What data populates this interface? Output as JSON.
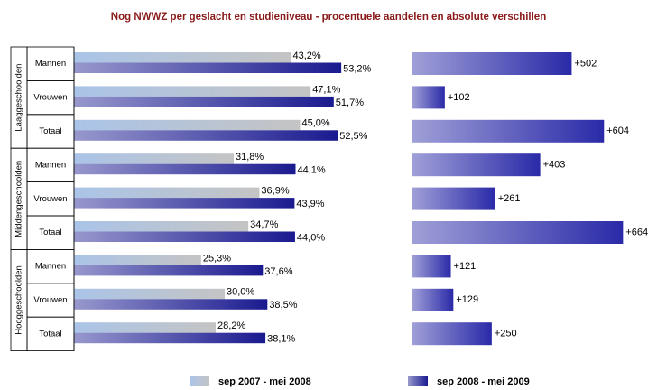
{
  "chart_data": [
    {
      "type": "bar",
      "orientation": "horizontal",
      "title": "Nog NWWZ per geslacht en studieniveau - procentuele aandelen en absolute verschillen",
      "groups": [
        "Laaggeschoolden",
        "Middengeschoolden",
        "Hooggeschoolden"
      ],
      "categories": [
        "Mannen",
        "Vrouwen",
        "Totaal",
        "Mannen",
        "Vrouwen",
        "Totaal",
        "Mannen",
        "Vrouwen",
        "Totaal"
      ],
      "xlim": [
        0,
        60
      ],
      "series": [
        {
          "name": "sep 2007 - mei 2008",
          "color": "#aac4e8",
          "values": [
            43.2,
            47.1,
            45.0,
            31.8,
            36.9,
            34.7,
            25.3,
            30.0,
            28.2
          ],
          "value_labels": [
            "43,2%",
            "47,1%",
            "45,0%",
            "31,8%",
            "36,9%",
            "34,7%",
            "25,3%",
            "30,0%",
            "28,2%"
          ]
        },
        {
          "name": "sep 2008 - mei 2009",
          "color": "#1a1a90",
          "values": [
            53.2,
            51.7,
            52.5,
            44.1,
            43.9,
            44.0,
            37.6,
            38.5,
            38.1
          ],
          "value_labels": [
            "53,2%",
            "51,7%",
            "52,5%",
            "44,1%",
            "43,9%",
            "44,0%",
            "37,6%",
            "38,5%",
            "38,1%"
          ]
        }
      ]
    },
    {
      "type": "bar",
      "orientation": "horizontal",
      "color": "#2a2aa8",
      "xlim": [
        0,
        700
      ],
      "values": [
        502,
        102,
        604,
        403,
        261,
        664,
        121,
        129,
        250
      ],
      "value_labels": [
        "+502",
        "+102",
        "+604",
        "+403",
        "+261",
        "+664",
        "+121",
        "+129",
        "+250"
      ]
    }
  ]
}
